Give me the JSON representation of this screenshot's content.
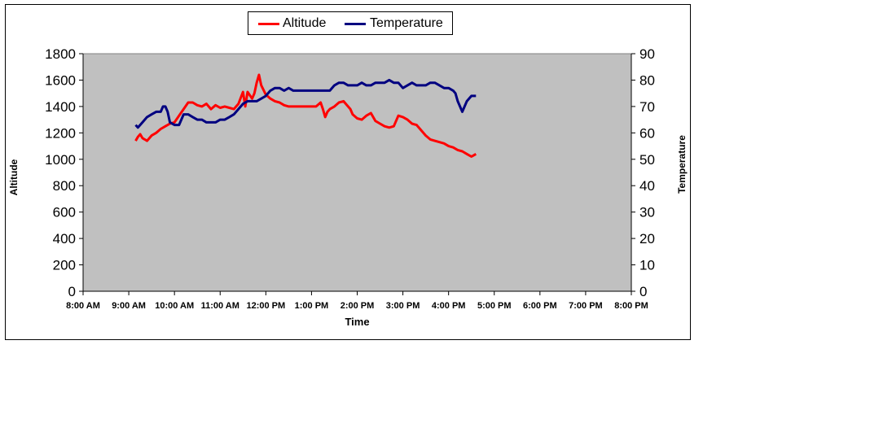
{
  "chart_data": {
    "type": "line",
    "xlabel": "Time",
    "x_ticks": [
      "8:00 AM",
      "9:00 AM",
      "10:00 AM",
      "11:00 AM",
      "12:00 PM",
      "1:00 PM",
      "2:00 PM",
      "3:00 PM",
      "4:00 PM",
      "5:00 PM",
      "6:00 PM",
      "7:00 PM",
      "8:00 PM"
    ],
    "xlim": [
      8,
      20
    ],
    "y_left": {
      "label": "Altitude",
      "lim": [
        0,
        1800
      ],
      "ticks": [
        "0",
        "200",
        "400",
        "600",
        "800",
        "1000",
        "1200",
        "1400",
        "1600",
        "1800"
      ]
    },
    "y_right": {
      "label": "Temperature",
      "lim": [
        0,
        90
      ],
      "ticks": [
        "0",
        "10",
        "20",
        "30",
        "40",
        "50",
        "60",
        "70",
        "80",
        "90"
      ]
    },
    "plot_background": "#c0c0c0",
    "legend_position": "top-center",
    "series": [
      {
        "name": "Altitude",
        "axis": "left",
        "color": "#ff0000",
        "x": [
          9.15,
          9.2,
          9.25,
          9.3,
          9.35,
          9.4,
          9.5,
          9.6,
          9.7,
          9.8,
          9.9,
          10.0,
          10.1,
          10.2,
          10.3,
          10.4,
          10.5,
          10.6,
          10.7,
          10.8,
          10.9,
          11.0,
          11.1,
          11.2,
          11.3,
          11.4,
          11.5,
          11.55,
          11.6,
          11.7,
          11.75,
          11.8,
          11.85,
          11.9,
          12.0,
          12.1,
          12.2,
          12.3,
          12.4,
          12.5,
          12.6,
          12.7,
          12.8,
          12.9,
          13.0,
          13.1,
          13.2,
          13.25,
          13.3,
          13.35,
          13.4,
          13.5,
          13.6,
          13.7,
          13.8,
          13.85,
          13.9,
          14.0,
          14.1,
          14.2,
          14.3,
          14.4,
          14.5,
          14.6,
          14.7,
          14.8,
          14.9,
          15.0,
          15.1,
          15.2,
          15.3,
          15.4,
          15.5,
          15.6,
          15.7,
          15.8,
          15.9,
          16.0,
          16.1,
          16.2,
          16.3,
          16.4,
          16.5,
          16.55,
          16.6
        ],
        "y": [
          1140,
          1170,
          1190,
          1160,
          1150,
          1140,
          1180,
          1200,
          1230,
          1250,
          1270,
          1280,
          1330,
          1380,
          1430,
          1430,
          1410,
          1400,
          1420,
          1380,
          1410,
          1390,
          1400,
          1390,
          1380,
          1420,
          1510,
          1400,
          1510,
          1460,
          1500,
          1580,
          1640,
          1560,
          1490,
          1460,
          1440,
          1430,
          1410,
          1400,
          1400,
          1400,
          1400,
          1400,
          1400,
          1400,
          1430,
          1380,
          1320,
          1360,
          1380,
          1400,
          1430,
          1440,
          1400,
          1380,
          1340,
          1310,
          1300,
          1330,
          1350,
          1290,
          1270,
          1250,
          1240,
          1250,
          1330,
          1320,
          1300,
          1270,
          1260,
          1220,
          1180,
          1150,
          1140,
          1130,
          1120,
          1100,
          1090,
          1070,
          1060,
          1040,
          1020,
          1030,
          1040
        ]
      },
      {
        "name": "Temperature",
        "axis": "right",
        "color": "#000080",
        "x": [
          9.15,
          9.2,
          9.3,
          9.4,
          9.5,
          9.6,
          9.7,
          9.75,
          9.8,
          9.85,
          9.9,
          10.0,
          10.1,
          10.15,
          10.2,
          10.3,
          10.4,
          10.5,
          10.6,
          10.7,
          10.8,
          10.9,
          11.0,
          11.1,
          11.2,
          11.3,
          11.4,
          11.5,
          11.6,
          11.7,
          11.8,
          11.9,
          12.0,
          12.1,
          12.2,
          12.3,
          12.4,
          12.5,
          12.6,
          12.7,
          12.8,
          12.9,
          13.0,
          13.1,
          13.2,
          13.3,
          13.4,
          13.5,
          13.6,
          13.7,
          13.8,
          13.9,
          14.0,
          14.1,
          14.2,
          14.3,
          14.4,
          14.5,
          14.6,
          14.7,
          14.8,
          14.9,
          15.0,
          15.1,
          15.2,
          15.3,
          15.4,
          15.5,
          15.6,
          15.7,
          15.8,
          15.9,
          16.0,
          16.1,
          16.15,
          16.2,
          16.25,
          16.3,
          16.35,
          16.4,
          16.5,
          16.6
        ],
        "y": [
          63,
          62,
          64,
          66,
          67,
          68,
          68,
          70,
          70,
          68,
          64,
          63,
          63,
          65,
          67,
          67,
          66,
          65,
          65,
          64,
          64,
          64,
          65,
          65,
          66,
          67,
          69,
          71,
          72,
          72,
          72,
          73,
          74,
          76,
          77,
          77,
          76,
          77,
          76,
          76,
          76,
          76,
          76,
          76,
          76,
          76,
          76,
          78,
          79,
          79,
          78,
          78,
          78,
          79,
          78,
          78,
          79,
          79,
          79,
          80,
          79,
          79,
          77,
          78,
          79,
          78,
          78,
          78,
          79,
          79,
          78,
          77,
          77,
          76,
          75,
          72,
          70,
          68,
          70,
          72,
          74,
          74
        ]
      }
    ]
  }
}
